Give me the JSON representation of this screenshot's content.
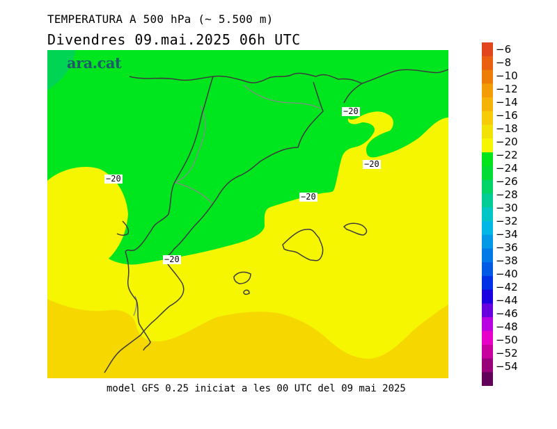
{
  "header": {
    "title": "TEMPERATURA A 500 hPa (~ 5.500 m)",
    "subtitle": "Divendres  09.mai.2025 06h UTC"
  },
  "logo": {
    "text": "ara.cat"
  },
  "footer": {
    "text": "model GFS 0.25 iniciat a les 00 UTC del 09 mai 2025"
  },
  "contour_labels": [
    "-20",
    "-20",
    "-20",
    "-20",
    "-20"
  ],
  "colorbar": {
    "labels": [
      "-6",
      "-8",
      "-10",
      "-12",
      "-14",
      "-16",
      "-18",
      "-20",
      "-22",
      "-24",
      "-26",
      "-28",
      "-30",
      "-32",
      "-34",
      "-36",
      "-38",
      "-40",
      "-42",
      "-44",
      "-46",
      "-48",
      "-50",
      "-52",
      "-54"
    ],
    "colors": [
      "#e2461e",
      "#e96010",
      "#ee7c09",
      "#f39c06",
      "#f5b307",
      "#f6cb07",
      "#f3e205",
      "#f6f600",
      "#00e41b",
      "#00dc34",
      "#00d464",
      "#00cc93",
      "#00c6c6",
      "#00b8e6",
      "#0099e6",
      "#007ae6",
      "#005ae6",
      "#0030e6",
      "#1a00e0",
      "#6600e0",
      "#b800e0",
      "#e600c8",
      "#c8009e",
      "#98007a",
      "#600058"
    ]
  },
  "map": {
    "field_colors": {
      "band_-18": "#f6f600",
      "band_-16": "#f6d800",
      "band_-20": "#00e61e",
      "band_-22": "#00d455"
    },
    "coast_color": "#3c3c3c",
    "border_color": "#888888"
  }
}
